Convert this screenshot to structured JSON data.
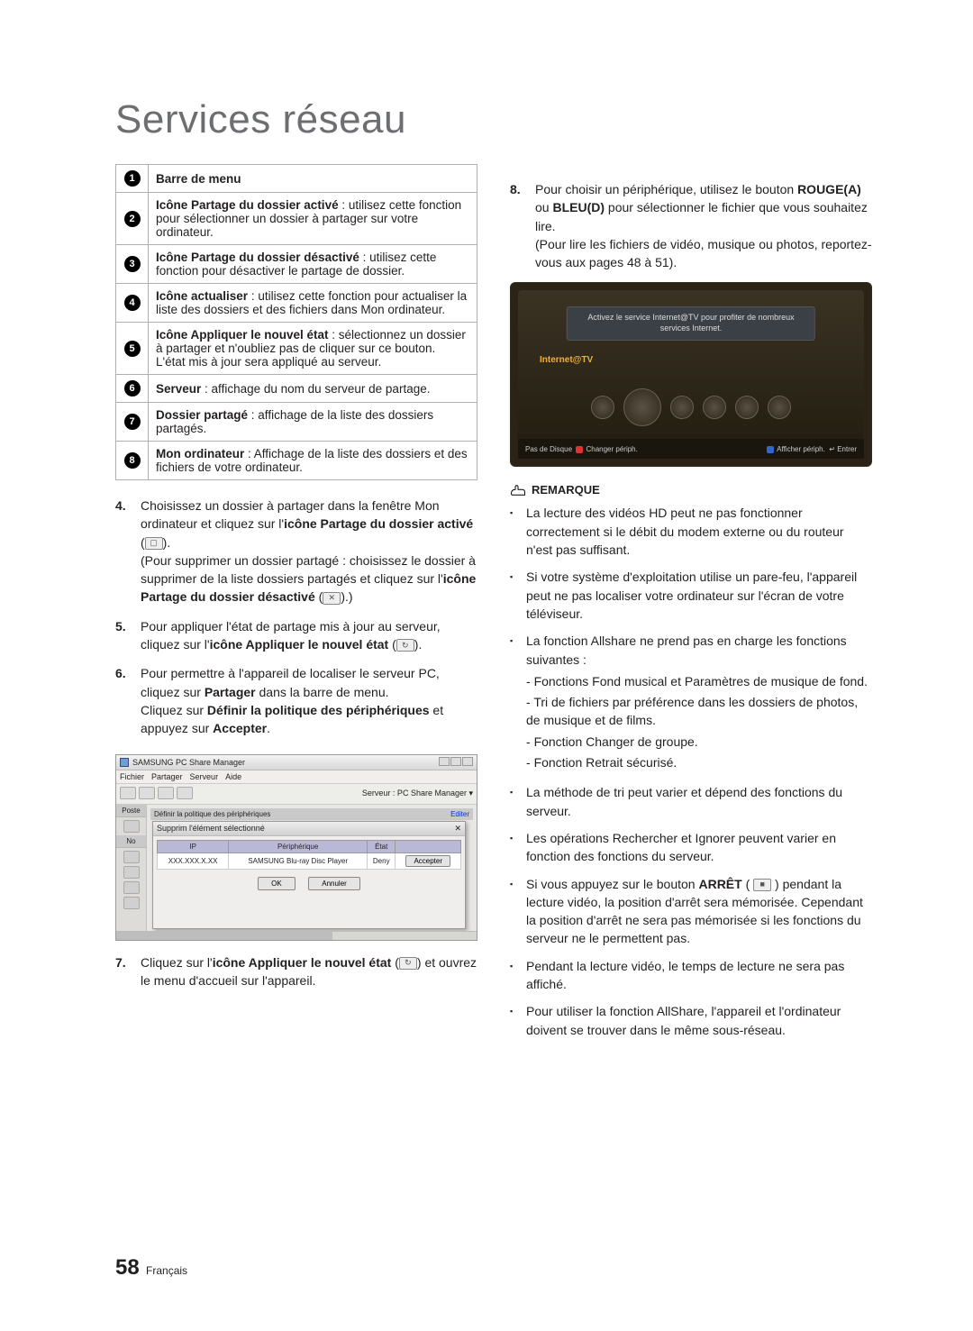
{
  "title": "Services réseau",
  "table": [
    {
      "n": "1",
      "html": "<b>Barre de menu</b>"
    },
    {
      "n": "2",
      "html": "<b>Icône Partage du dossier activé</b> : utilisez cette fonction pour sélectionner un dossier à partager sur votre ordinateur."
    },
    {
      "n": "3",
      "html": "<b>Icône Partage du dossier désactivé</b> : utilisez cette fonction pour désactiver le partage de dossier."
    },
    {
      "n": "4",
      "html": "<b>Icône actualiser</b> : utilisez cette fonction pour actualiser la liste des dossiers et des fichiers dans Mon ordinateur."
    },
    {
      "n": "5",
      "html": "<b>Icône Appliquer le nouvel état</b> : sélectionnez un dossier à partager et n'oubliez pas de cliquer sur ce bouton.<br>L'état mis à jour sera appliqué au serveur."
    },
    {
      "n": "6",
      "html": "<b>Serveur</b> : affichage du nom du serveur de partage."
    },
    {
      "n": "7",
      "html": "<b>Dossier partagé</b> : affichage de la liste des dossiers partagés."
    },
    {
      "n": "8",
      "html": "<b>Mon ordinateur</b> : Affichage de la liste des dossiers et des fichiers de votre ordinateur."
    }
  ],
  "steps_left": [
    {
      "n": "4.",
      "html": "Choisissez un dossier à partager dans la fenêtre Mon ordinateur et cliquez sur l'<b>icône Partage du dossier activé</b> (<span class='inline-icon'>▢</span>).<br>(Pour supprimer un dossier partagé : choisissez le dossier à supprimer de la liste dossiers partagés et cliquez sur l'<b>icône Partage du dossier désactivé</b> (<span class='inline-icon'>✕</span>).)"
    },
    {
      "n": "5.",
      "html": "Pour appliquer l'état de partage mis à jour au serveur, cliquez sur l'<b>icône Appliquer le nouvel état</b> (<span class='inline-icon'>↻</span>)."
    },
    {
      "n": "6.",
      "html": "Pour permettre à l'appareil de localiser le serveur PC, cliquez sur <b>Partager</b> dans la barre de menu.<br>Cliquez sur <b>Définir la politique des périphériques</b> et appuyez sur <b>Accepter</b>."
    }
  ],
  "step7": {
    "n": "7.",
    "html": "Cliquez sur l'<b>icône Appliquer le nouvel état</b> (<span class='inline-icon'>↻</span>) et ouvrez le menu d'accueil sur l'appareil."
  },
  "screenshot": {
    "title": "SAMSUNG PC Share Manager",
    "menus": [
      "Fichier",
      "Partager",
      "Serveur",
      "Aide"
    ],
    "server_label": "Serveur : PC Share Manager ▾",
    "panel_title": "Définir la politique des périphériques",
    "edit": "Editer",
    "dialog_title": "Supprim l'élément sélectionné",
    "cols": [
      "IP",
      "Périphérique",
      "État",
      ""
    ],
    "row": [
      "XXX.XXX.X.XX",
      "SAMSUNG Blu-ray Disc Player",
      "Deny",
      "Accepter"
    ],
    "ok": "OK",
    "cancel": "Annuler",
    "left_label": "Poste",
    "left_label2": "No"
  },
  "step8": {
    "n": "8.",
    "html": "Pour choisir un périphérique, utilisez le bouton <b>ROUGE(A)</b> ou <b>BLEU(D)</b> pour sélectionner le fichier que vous souhaitez lire.<br>(Pour lire les fichiers de vidéo, musique ou photos, reportez-vous aux pages 48 à 51)."
  },
  "tv": {
    "banner": "Activez le service Internet@TV pour profiter de nombreux services Internet.",
    "label": "Internet@TV",
    "bl_left": "Pas de Disque",
    "bl_a": "Changer périph.",
    "bl_d": "Afficher périph.",
    "bl_enter": "Entrer"
  },
  "remarque_label": "REMARQUE",
  "remarks": [
    "La lecture des vidéos HD peut ne pas fonctionner correctement si le débit du modem externe ou du routeur n'est pas suffisant.",
    "Si votre système d'exploitation utilise un pare-feu, l'appareil peut ne pas localiser votre ordinateur sur l'écran de votre téléviseur.",
    {
      "text": "La fonction Allshare ne prend pas en charge les fonctions suivantes :",
      "sub": [
        "Fonctions Fond musical et Paramètres de musique de fond.",
        "Tri de fichiers par préférence dans les dossiers de photos, de musique et de films.",
        "Fonction Changer de groupe.",
        "Fonction Retrait sécurisé."
      ]
    },
    "La méthode de tri peut varier et dépend des fonctions du serveur.",
    "Les opérations Rechercher et Ignorer peuvent varier en fonction des fonctions du serveur.",
    "Si vous appuyez sur le bouton <b>ARRÊT</b> ( <span class='inline-icon'>■</span> ) pendant la lecture vidéo, la position d'arrêt sera mémorisée. Cependant la position d'arrêt ne sera pas mémorisée si les fonctions du serveur ne le permettent pas.",
    "Pendant la lecture vidéo, le temps de lecture ne sera pas affiché.",
    "Pour utiliser la fonction AllShare, l'appareil et l'ordinateur doivent se trouver dans le même sous-réseau."
  ],
  "footer": {
    "page": "58",
    "lang": "Français"
  }
}
